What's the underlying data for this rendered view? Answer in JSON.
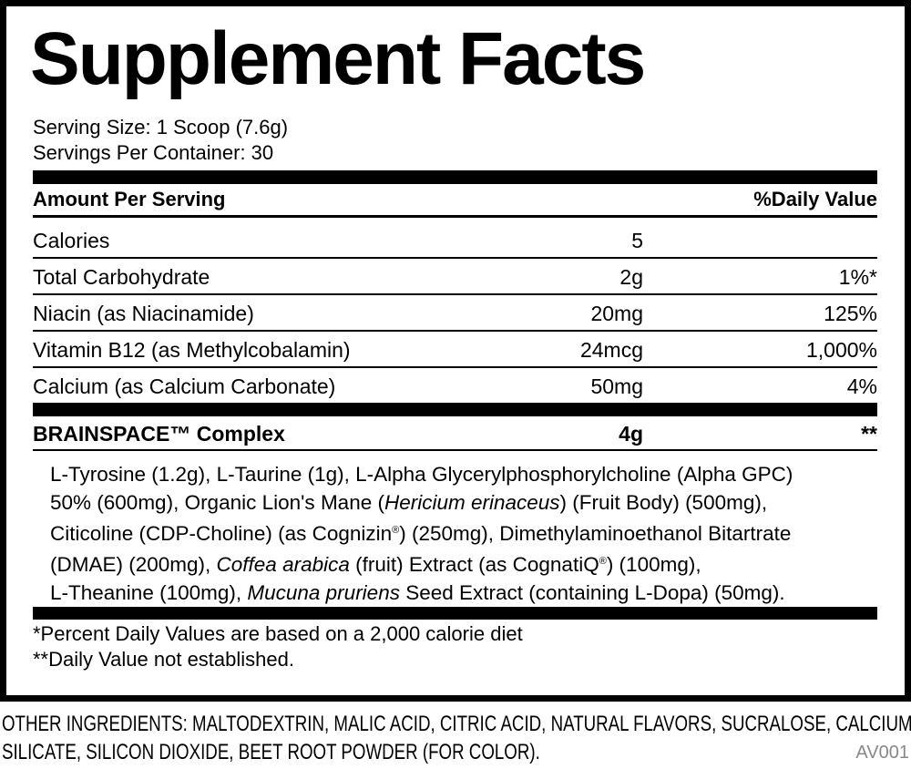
{
  "title": "Supplement Facts",
  "serving_size": "Serving Size: 1 Scoop (7.6g)",
  "servings_per_container": "Servings Per Container: 30",
  "header": {
    "amount": "Amount Per Serving",
    "daily_value": "%Daily Value"
  },
  "rows": [
    {
      "name": "Calories",
      "amount": "5",
      "dv": ""
    },
    {
      "name": "Total Carbohydrate",
      "amount": "2g",
      "dv": "1%*"
    },
    {
      "name": "Niacin (as Niacinamide)",
      "amount": "20mg",
      "dv": "125%"
    },
    {
      "name": "Vitamin B12 (as Methylcobalamin)",
      "amount": "24mcg",
      "dv": "1,000%"
    },
    {
      "name": "Calcium (as Calcium Carbonate)",
      "amount": "50mg",
      "dv": "4%"
    }
  ],
  "blend": {
    "name": "BRAINSPACE™ Complex",
    "amount": "4g",
    "dv": "**"
  },
  "ingredients": [
    "L-Tyrosine (1.2g), L-Taurine (1g), L-Alpha Glycerylphosphorylcholine (Alpha GPC)",
    "50% (600mg), Organic Lion's Mane (",
    "Hericium erinaceus",
    ") (Fruit Body) (500mg),",
    "Citicoline (CDP-Choline) (as Cognizin",
    "®",
    ") (250mg), Dimethylaminoethanol Bitartrate",
    "(DMAE) (200mg), ",
    "Coffea arabica",
    " (fruit) Extract (as CognatiQ",
    "®",
    ") (100mg),",
    "L-Theanine (100mg), ",
    "Mucuna pruriens",
    " Seed Extract (containing L-Dopa) (50mg)."
  ],
  "footnotes": [
    "*Percent Daily Values are based on a 2,000 calorie diet",
    "**Daily Value not established."
  ],
  "other_ingredients": [
    "OTHER INGREDIENTS: MALTODEXTRIN, MALIC ACID, CITRIC ACID, NATURAL FLAVORS, SUCRALOSE, CALCIUM",
    "SILICATE, SILICON DIOXIDE, BEET ROOT POWDER (FOR COLOR)."
  ],
  "code": "AV001"
}
